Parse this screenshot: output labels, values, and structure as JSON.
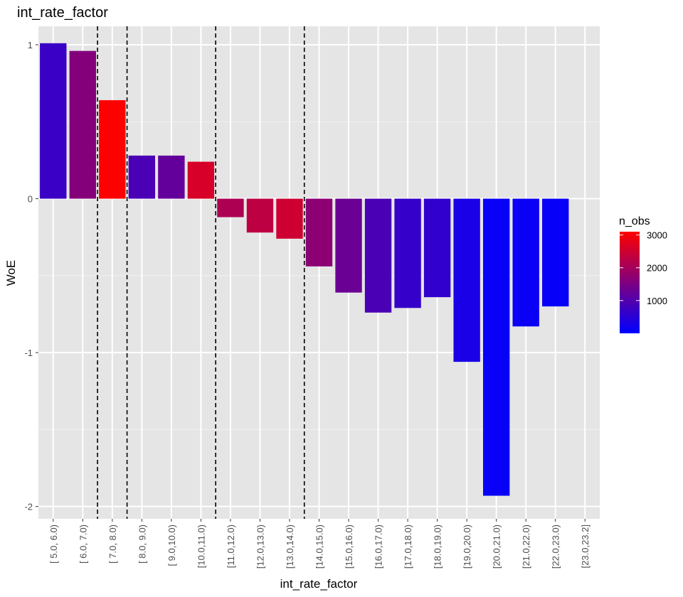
{
  "chart_data": {
    "type": "bar",
    "title": "int_rate_factor",
    "xlabel": "int_rate_factor",
    "ylabel": "WoE",
    "ylim": [
      -2.08,
      1.12
    ],
    "yticks": [
      1,
      0,
      -1,
      -2
    ],
    "categories": [
      "[ 5.0, 6.0)",
      "[ 6.0, 7.0)",
      "[ 7.0, 8.0)",
      "[ 8.0, 9.0)",
      "[ 9.0,10.0)",
      "[10.0,11.0)",
      "[11.0,12.0)",
      "[12.0,13.0)",
      "[13.0,14.0)",
      "[14.0,15.0)",
      "[15.0,16.0)",
      "[16.0,17.0)",
      "[17.0,18.0)",
      "[18.0,19.0)",
      "[19.0,20.0)",
      "[20.0,21.0)",
      "[21.0,22.0)",
      "[22.0,23.0)",
      "[23.0,23.2]"
    ],
    "values": [
      1.01,
      0.96,
      0.64,
      0.28,
      0.28,
      0.24,
      -0.12,
      -0.22,
      -0.26,
      -0.44,
      -0.61,
      -0.74,
      -0.71,
      -0.64,
      -1.06,
      -1.93,
      -0.83,
      -0.7,
      0
    ],
    "fill_variable": "n_obs",
    "n_obs": [
      700,
      1600,
      3100,
      900,
      1200,
      2600,
      2100,
      2300,
      2500,
      1700,
      1300,
      900,
      650,
      600,
      300,
      100,
      120,
      80,
      0
    ],
    "vlines_between": [
      [
        1,
        2
      ],
      [
        2,
        3
      ],
      [
        5,
        6
      ],
      [
        8,
        9
      ]
    ],
    "legend": {
      "title": "n_obs",
      "ticks": [
        1000,
        2000,
        3000
      ],
      "range": [
        0,
        3100
      ],
      "color_low": "#0000ff",
      "color_high": "#ff0000",
      "placement": "right"
    },
    "grid": true,
    "panel_color": "#e5e5e5"
  }
}
